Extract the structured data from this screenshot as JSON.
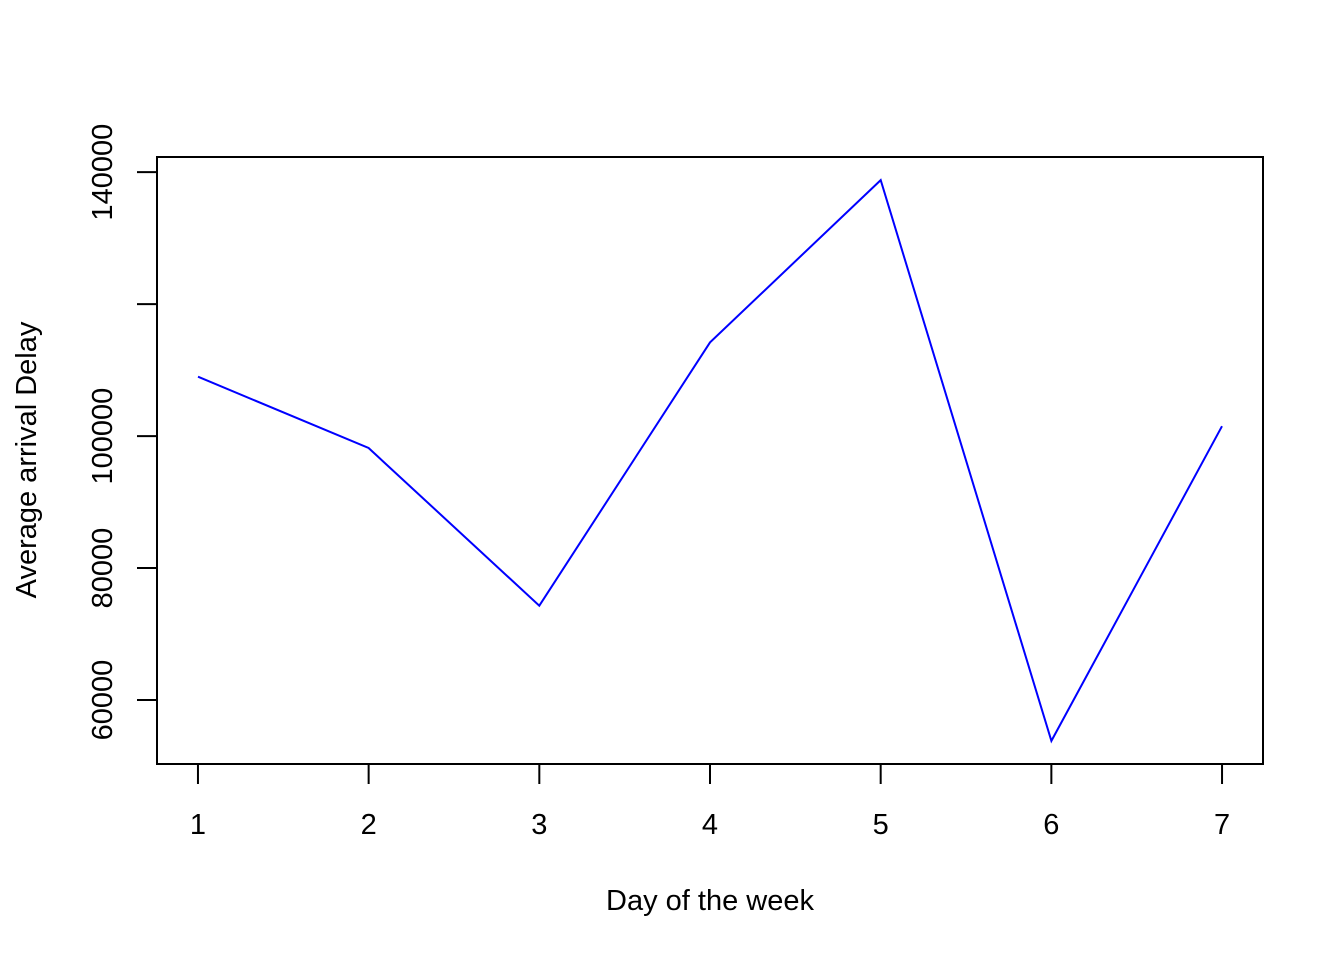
{
  "chart_data": {
    "type": "line",
    "title": "",
    "xlabel": "Day of the week",
    "ylabel": "Average arrival Delay",
    "x": [
      1,
      2,
      3,
      4,
      5,
      6,
      7
    ],
    "series": [
      {
        "values": [
          109000,
          98200,
          74300,
          114200,
          138800,
          53800,
          101500
        ],
        "color": "#0000ff"
      }
    ],
    "xticks": [
      1,
      2,
      3,
      4,
      5,
      6,
      7
    ],
    "xtick_labels": [
      "1",
      "2",
      "3",
      "4",
      "5",
      "6",
      "7"
    ],
    "yticks": [
      60000,
      80000,
      100000,
      120000,
      140000
    ],
    "ytick_labels": [
      "60000",
      "80000",
      "100000",
      "",
      "140000"
    ],
    "xlim": [
      0.76,
      7.24
    ],
    "ylim": [
      50300,
      142300
    ],
    "grid": false,
    "legend": "none"
  }
}
